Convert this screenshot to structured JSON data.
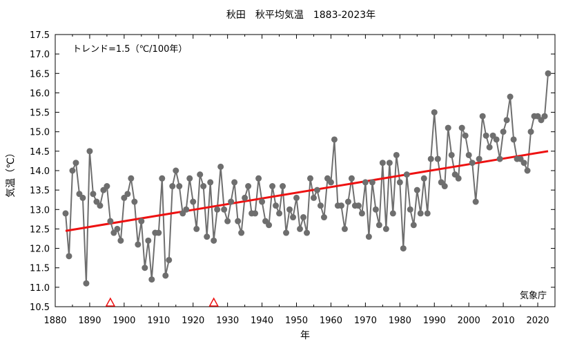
{
  "chart_data": {
    "type": "line",
    "title": "秋田　秋平均気温　1883-2023年",
    "xlabel": "年",
    "ylabel": "気温（℃）",
    "annotation": "トレンド=1.5（℃/100年）",
    "source_label": "気象庁",
    "xlim": [
      1880,
      2025
    ],
    "ylim": [
      10.5,
      17.5
    ],
    "xticks": [
      "1880",
      "1890",
      "1900",
      "1910",
      "1920",
      "1930",
      "1940",
      "1950",
      "1960",
      "1970",
      "1980",
      "1990",
      "2000",
      "2010",
      "2020"
    ],
    "yticks": [
      "10.5",
      "11.0",
      "11.5",
      "12.0",
      "12.5",
      "13.0",
      "13.5",
      "14.0",
      "14.5",
      "15.0",
      "15.5",
      "16.0",
      "16.5",
      "17.0",
      "17.5"
    ],
    "grid": false,
    "series": [
      {
        "name": "",
        "color": "#6e6e6e",
        "x": [
          1883,
          1884,
          1885,
          1886,
          1887,
          1888,
          1889,
          1890,
          1891,
          1892,
          1893,
          1894,
          1895,
          1896,
          1897,
          1898,
          1899,
          1900,
          1901,
          1902,
          1903,
          1904,
          1905,
          1906,
          1907,
          1908,
          1909,
          1910,
          1911,
          1912,
          1913,
          1914,
          1915,
          1916,
          1917,
          1918,
          1919,
          1920,
          1921,
          1922,
          1923,
          1924,
          1925,
          1926,
          1927,
          1928,
          1929,
          1930,
          1931,
          1932,
          1933,
          1934,
          1935,
          1936,
          1937,
          1938,
          1939,
          1940,
          1941,
          1942,
          1943,
          1944,
          1945,
          1946,
          1947,
          1948,
          1949,
          1950,
          1951,
          1952,
          1953,
          1954,
          1955,
          1956,
          1957,
          1958,
          1959,
          1960,
          1961,
          1962,
          1963,
          1964,
          1965,
          1966,
          1967,
          1968,
          1969,
          1970,
          1971,
          1972,
          1973,
          1974,
          1975,
          1976,
          1977,
          1978,
          1979,
          1980,
          1981,
          1982,
          1983,
          1984,
          1985,
          1986,
          1987,
          1988,
          1989,
          1990,
          1991,
          1992,
          1993,
          1994,
          1995,
          1996,
          1997,
          1998,
          1999,
          2000,
          2001,
          2002,
          2003,
          2004,
          2005,
          2006,
          2007,
          2008,
          2009,
          2010,
          2011,
          2012,
          2013,
          2014,
          2015,
          2016,
          2017,
          2018,
          2019,
          2020,
          2021,
          2022,
          2023
        ],
        "values": [
          12.9,
          11.8,
          14.0,
          14.2,
          13.4,
          13.3,
          11.1,
          14.5,
          13.4,
          13.2,
          13.1,
          13.5,
          13.6,
          12.7,
          12.4,
          12.5,
          12.2,
          13.3,
          13.4,
          13.8,
          13.2,
          12.1,
          12.7,
          11.5,
          12.2,
          11.2,
          12.4,
          12.4,
          13.8,
          11.3,
          11.7,
          13.6,
          14.0,
          13.6,
          12.9,
          13.0,
          13.8,
          13.2,
          12.5,
          13.9,
          13.6,
          12.3,
          13.7,
          12.2,
          13.0,
          14.1,
          13.0,
          12.7,
          13.2,
          13.7,
          12.7,
          12.4,
          13.3,
          13.6,
          12.9,
          12.9,
          13.8,
          13.2,
          12.7,
          12.6,
          13.6,
          13.1,
          12.9,
          13.6,
          12.4,
          13.0,
          12.8,
          13.3,
          12.5,
          12.8,
          12.4,
          13.8,
          13.3,
          13.5,
          13.1,
          12.8,
          13.8,
          13.7,
          14.8,
          13.1,
          13.1,
          12.5,
          13.2,
          13.8,
          13.1,
          13.1,
          12.9,
          13.7,
          12.3,
          13.7,
          13.0,
          12.6,
          14.2,
          12.5,
          14.2,
          12.9,
          14.4,
          13.7,
          12.0,
          13.9,
          13.0,
          12.6,
          13.5,
          12.9,
          13.8,
          12.9,
          14.3,
          15.5,
          14.3,
          13.7,
          13.6,
          15.1,
          14.4,
          13.9,
          13.8,
          15.1,
          14.9,
          14.4,
          14.2,
          13.2,
          14.3,
          15.4,
          14.9,
          14.6,
          14.9,
          14.8,
          14.3,
          15.0,
          15.3,
          15.9,
          14.8,
          14.3,
          14.3,
          14.2,
          14.0,
          15.0,
          15.4,
          15.4,
          15.3,
          15.4,
          16.5
        ]
      },
      {
        "name": "",
        "color": "#ee1111",
        "x": [
          1883,
          2023
        ],
        "values": [
          12.45,
          14.5
        ]
      }
    ],
    "markers": {
      "shape": "triangle",
      "color": "#ee1111",
      "x": [
        1896,
        1926
      ],
      "values": [
        10.5,
        10.5
      ]
    }
  }
}
